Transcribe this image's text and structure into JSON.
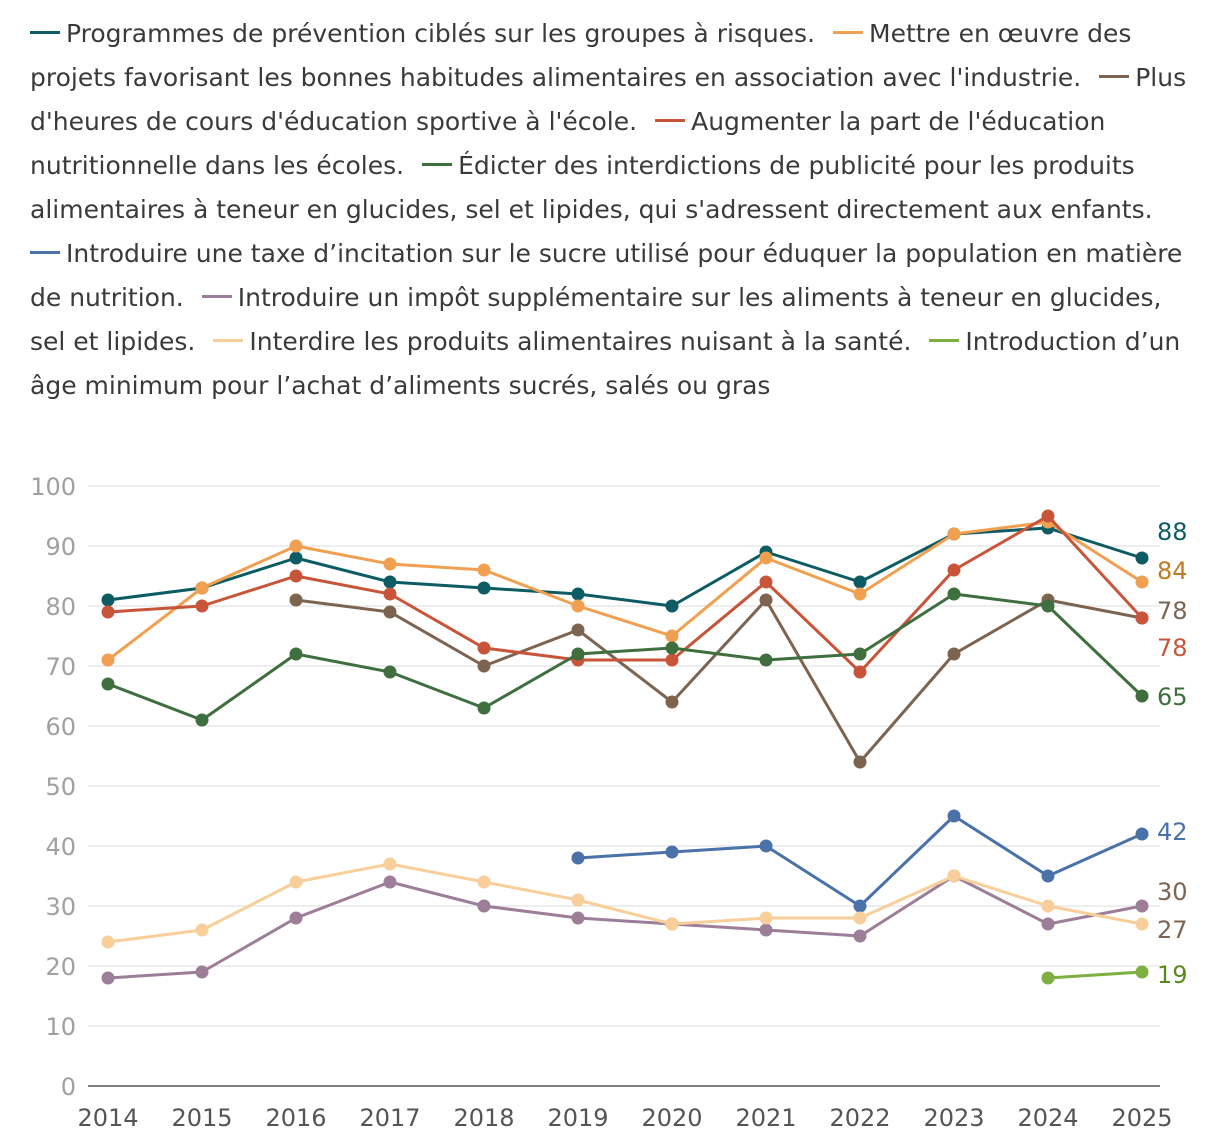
{
  "chart_data": {
    "type": "line",
    "title": "",
    "xlabel": "",
    "ylabel": "",
    "x": [
      "2014",
      "2015",
      "2016",
      "2017",
      "2018",
      "2019",
      "2020",
      "2021",
      "2022",
      "2023",
      "2024",
      "2025"
    ],
    "ylim": [
      0,
      100
    ],
    "yticks": [
      "0",
      "10",
      "20",
      "30",
      "40",
      "50",
      "60",
      "70",
      "80",
      "90",
      "100"
    ],
    "grid": true,
    "legend_position": "top",
    "series": [
      {
        "name": "Programmes de prévention ciblés sur les groupes à risques.",
        "color": "#0d5c63",
        "values": [
          81,
          83,
          88,
          84,
          83,
          82,
          80,
          89,
          84,
          92,
          93,
          88
        ],
        "end_label": "88"
      },
      {
        "name": "Mettre en œuvre des projets favorisant les bonnes habitudes alimentaires en association avec l'industrie.",
        "color": "#f0a050",
        "values": [
          71,
          83,
          90,
          87,
          86,
          80,
          75,
          88,
          82,
          92,
          94,
          84
        ],
        "end_label": "84"
      },
      {
        "name": "Plus d'heures de cours d'éducation sportive à l'école.",
        "color": "#7d6450",
        "values": [
          null,
          null,
          81,
          79,
          70,
          76,
          64,
          81,
          54,
          72,
          81,
          78
        ],
        "end_label": "78"
      },
      {
        "name": "Augmenter la part de l'éducation nutritionnelle dans les écoles.",
        "color": "#c8553a",
        "values": [
          79,
          80,
          85,
          82,
          73,
          71,
          71,
          84,
          69,
          86,
          95,
          78
        ],
        "end_label": "78"
      },
      {
        "name": "Édicter des interdictions de publicité pour les produits alimentaires à teneur en glucides, sel et lipides, qui s'adressent directement aux enfants.",
        "color": "#3f6e3f",
        "values": [
          67,
          61,
          72,
          69,
          63,
          72,
          73,
          71,
          72,
          82,
          80,
          65
        ],
        "end_label": "65"
      },
      {
        "name": "Introduire une taxe d’incitation sur le sucre utilisé pour éduquer la population en matière de nutrition.",
        "color": "#4a72a8",
        "values": [
          null,
          null,
          null,
          null,
          null,
          38,
          39,
          40,
          30,
          45,
          35,
          42
        ],
        "end_label": "42"
      },
      {
        "name": "Introduire un impôt supplémentaire sur les aliments à teneur en glucides, sel et lipides.",
        "color": "#9c7e98",
        "values": [
          18,
          19,
          28,
          34,
          30,
          28,
          27,
          26,
          25,
          35,
          27,
          30
        ],
        "end_label": "30"
      },
      {
        "name": "Interdire les produits alimentaires nuisant à la santé.",
        "color": "#f8cf9a",
        "values": [
          24,
          26,
          34,
          37,
          34,
          31,
          27,
          28,
          28,
          35,
          30,
          27
        ],
        "end_label": "27"
      },
      {
        "name": "Introduction d’un âge minimum pour l’achat d’aliments sucrés, salés ou gras",
        "color": "#7db040",
        "values": [
          null,
          null,
          null,
          null,
          null,
          null,
          null,
          null,
          null,
          null,
          18,
          19
        ],
        "end_label": "19"
      }
    ],
    "end_label_colors": [
      "#0d5c63",
      "#c07a20",
      "#7d6450",
      "#c8553a",
      "#3f6e3f",
      "#4a72a8",
      "#7d6450",
      "#7d6450",
      "#5a8a1e"
    ]
  }
}
